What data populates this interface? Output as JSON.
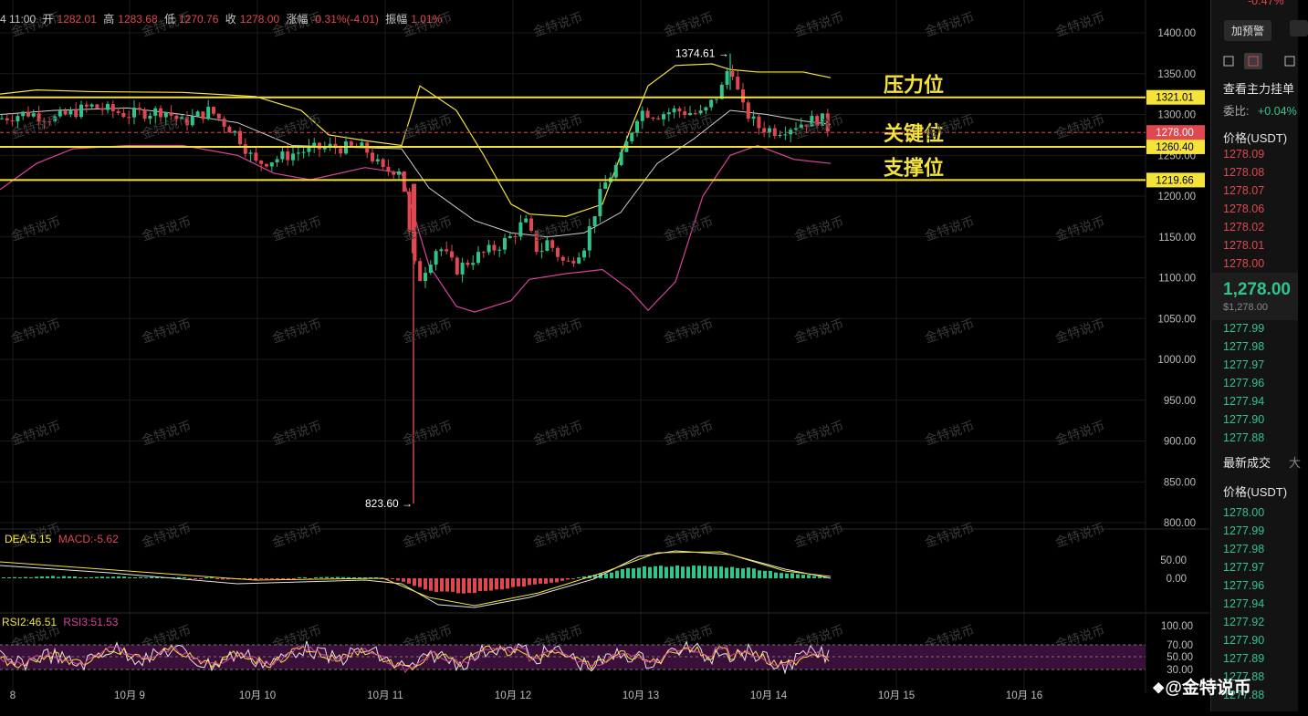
{
  "header": {
    "time": "4 11:00",
    "open_label": "开",
    "open": "1282.01",
    "high_label": "高",
    "high": "1283.68",
    "low_label": "低",
    "low": "1270.76",
    "close_label": "收",
    "close": "1278.00",
    "change_label": "涨幅",
    "change": "-0.31%(-4.01)",
    "amp_label": "振幅",
    "amp": "1.01%"
  },
  "chart": {
    "y_ticks": [
      "1400.00",
      "1350.00",
      "1300.00",
      "1250.00",
      "1200.00",
      "1150.00",
      "1100.00",
      "1050.00",
      "1000.00",
      "950.00",
      "900.00",
      "850.00",
      "800.00"
    ],
    "x_ticks": [
      "8",
      "10月 9",
      "10月 10",
      "10月 11",
      "10月 12",
      "10月 13",
      "10月 14",
      "10月 15",
      "10月 16"
    ],
    "levels": [
      {
        "name": "压力位",
        "value": "1321.01",
        "price": 1321.01
      },
      {
        "name": "关键位",
        "value": "1260.40",
        "price": 1260.4
      },
      {
        "name": "支撑位",
        "value": "1219.66",
        "price": 1219.66
      }
    ],
    "current_price_tag": "1278.00",
    "high_annotation": "1374.61 →",
    "low_annotation": "823.60 →",
    "watermark_text": "金特说币",
    "colors": {
      "up": "#31c48a",
      "down": "#e0474f",
      "level": "#f5e33a",
      "boll_upper": "#f5e33a",
      "boll_mid": "#d0d0d0",
      "boll_lower": "#d6439a"
    }
  },
  "macd": {
    "dea_label": "DEA:5.15",
    "macd_label": "MACD:-5.62",
    "y_ticks": [
      "50.00",
      "0.00"
    ]
  },
  "rsi": {
    "rsi2_label": "RSI2:46.51",
    "rsi3_label": "RSI3:51.53",
    "y_ticks": [
      "100.00",
      "70.00",
      "50.00",
      "30.00"
    ]
  },
  "side": {
    "top_change": "-0.47%",
    "alert_button": "加预警",
    "depth_title": "查看主力挂单",
    "commission_label": "委比:",
    "commission_value": "+0.04%",
    "price_header": "价格(USDT)",
    "asks": [
      "1278.09",
      "1278.08",
      "1278.07",
      "1278.06",
      "1278.02",
      "1278.01",
      "1278.00"
    ],
    "last_price": "1,278.00",
    "last_price_usd": "$1,278.00",
    "bids": [
      "1277.99",
      "1277.98",
      "1277.97",
      "1277.96",
      "1277.94",
      "1277.90",
      "1277.88"
    ],
    "trades_title": "最新成交",
    "trades_title_extra": "大",
    "trades_header": "价格(USDT)",
    "trades": [
      "1278.00",
      "1277.99",
      "1277.98",
      "1277.97",
      "1277.96",
      "1277.94",
      "1277.92",
      "1277.90",
      "1277.89",
      "1277.88",
      "1277.88"
    ]
  },
  "footer_brand": "@金特说币"
}
